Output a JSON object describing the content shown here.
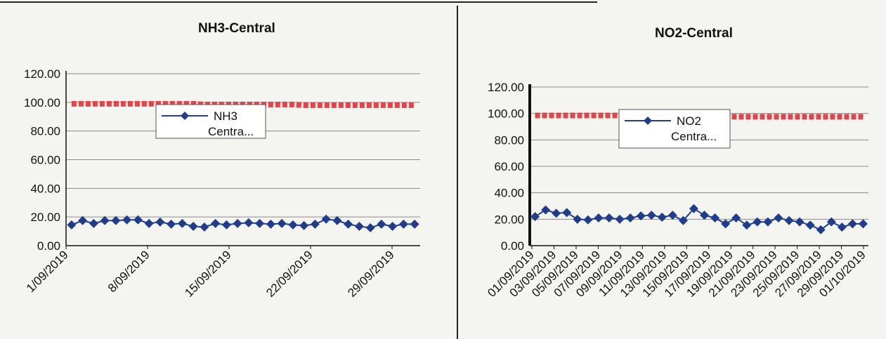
{
  "chart_data": [
    {
      "type": "line",
      "title": "NH3-Central",
      "ylim": [
        0,
        120
      ],
      "yticks": [
        "0.00",
        "20.00",
        "40.00",
        "60.00",
        "80.00",
        "100.00",
        "120.00"
      ],
      "x_tick_labels": [
        "1/09/2019",
        "8/09/2019",
        "15/09/2019",
        "22/09/2019",
        "29/09/2019"
      ],
      "grid": true,
      "legend": {
        "position": "top-center",
        "entries": [
          "NH3",
          "Centra..."
        ]
      },
      "colors": {
        "series": "#1f3d8c",
        "limit": "#e0454a"
      },
      "series": [
        {
          "name": "NH3",
          "legend_line2": "Centra...",
          "x": [
            "1/09/2019",
            "2/09/2019",
            "3/09/2019",
            "4/09/2019",
            "5/09/2019",
            "6/09/2019",
            "7/09/2019",
            "8/09/2019",
            "9/09/2019",
            "10/09/2019",
            "11/09/2019",
            "12/09/2019",
            "13/09/2019",
            "14/09/2019",
            "15/09/2019",
            "16/09/2019",
            "17/09/2019",
            "18/09/2019",
            "19/09/2019",
            "20/09/2019",
            "21/09/2019",
            "22/09/2019",
            "23/09/2019",
            "24/09/2019",
            "25/09/2019",
            "26/09/2019",
            "27/09/2019",
            "28/09/2019",
            "29/09/2019",
            "30/09/2019",
            "1/10/2019",
            "2/10/2019"
          ],
          "values": [
            14.5,
            17.5,
            15.5,
            17.5,
            17.5,
            18,
            18,
            15.5,
            16.5,
            15,
            15.5,
            13.5,
            13,
            15.5,
            14.5,
            15.5,
            16,
            15.5,
            15,
            15.5,
            14.5,
            14,
            15,
            18.5,
            17.5,
            15,
            13.5,
            12.5,
            15,
            13.5,
            15,
            15
          ]
        },
        {
          "values": [
            99,
            99,
            99,
            99,
            99,
            99,
            99,
            99,
            99,
            99,
            99,
            99,
            98.5,
            98.5,
            98.5,
            98.5,
            98.5,
            98.5,
            98.5,
            98.5,
            98.5,
            98,
            98,
            98,
            98,
            98,
            98,
            98,
            98,
            98,
            98,
            98
          ]
        }
      ]
    },
    {
      "type": "line",
      "title": "NO2-Central",
      "ylim": [
        0,
        120
      ],
      "yticks": [
        "0.00",
        "20.00",
        "40.00",
        "60.00",
        "80.00",
        "100.00",
        "120.00"
      ],
      "x_tick_labels": [
        "01/09/2019",
        "03/09/2019",
        "05/09/2019",
        "07/09/2019",
        "09/09/2019",
        "11/09/2019",
        "13/09/2019",
        "15/09/2019",
        "17/09/2019",
        "19/09/2019",
        "21/09/2019",
        "23/09/2019",
        "25/09/2019",
        "27/09/2019",
        "29/09/2019",
        "01/10/2019"
      ],
      "grid": true,
      "legend": {
        "position": "top-center",
        "entries": [
          "NO2",
          "Centra..."
        ]
      },
      "colors": {
        "series": "#1f3d8c",
        "limit": "#e0454a"
      },
      "series": [
        {
          "name": "NO2",
          "legend_line2": "Centra...",
          "x": [
            "01/09/2019",
            "02/09/2019",
            "03/09/2019",
            "04/09/2019",
            "05/09/2019",
            "06/09/2019",
            "07/09/2019",
            "08/09/2019",
            "09/09/2019",
            "10/09/2019",
            "11/09/2019",
            "12/09/2019",
            "13/09/2019",
            "14/09/2019",
            "15/09/2019",
            "16/09/2019",
            "17/09/2019",
            "18/09/2019",
            "19/09/2019",
            "20/09/2019",
            "21/09/2019",
            "22/09/2019",
            "23/09/2019",
            "24/09/2019",
            "25/09/2019",
            "26/09/2019",
            "27/09/2019",
            "28/09/2019",
            "29/09/2019",
            "30/09/2019",
            "01/10/2019",
            "02/10/2019"
          ],
          "values": [
            22,
            27,
            24.5,
            25,
            20,
            19.5,
            21,
            21,
            20,
            21,
            22.5,
            23,
            21.5,
            23,
            19,
            28,
            23,
            21,
            16.5,
            21,
            15.5,
            18,
            18,
            21,
            19,
            18,
            15.5,
            12,
            18,
            14,
            16.5,
            16.5
          ]
        },
        {
          "values": [
            98.5,
            98.5,
            98.5,
            98.5,
            98.5,
            98.5,
            98.5,
            98.5,
            98.5,
            98,
            98,
            98,
            98,
            98,
            98,
            98,
            98,
            98,
            97.5,
            97.5,
            97.5,
            97.5,
            97.5,
            97.5,
            97.5,
            97.5,
            97.5,
            97.5,
            97.5,
            97.5,
            97.5,
            97.5
          ]
        }
      ]
    }
  ]
}
